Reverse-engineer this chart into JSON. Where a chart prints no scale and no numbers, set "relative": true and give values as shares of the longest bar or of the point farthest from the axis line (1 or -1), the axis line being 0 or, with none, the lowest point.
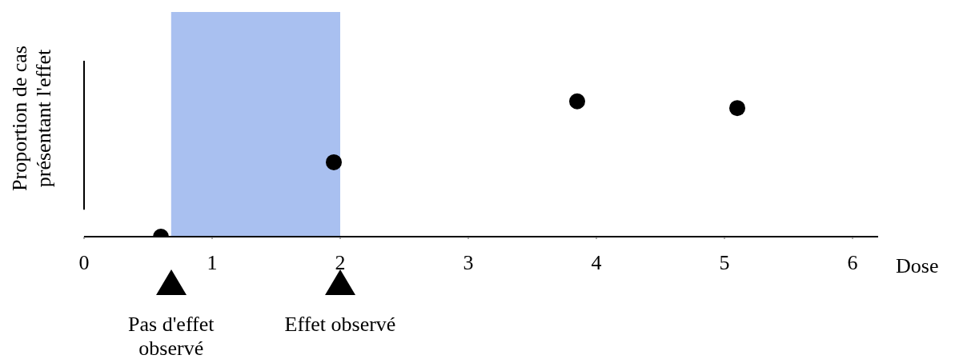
{
  "chart_data": {
    "type": "scatter",
    "relative": true,
    "xlabel": "Dose",
    "ylabel": "Proportion de cas présentant l'effet",
    "x": [
      0.6,
      1.95,
      3.85,
      5.1
    ],
    "series": [
      {
        "color": "#000000",
        "values": [
          0,
          0.55,
          1,
          0.95
        ]
      }
    ],
    "xlim": [
      0,
      6.2
    ],
    "xticks": [
      0,
      1,
      2,
      3,
      4,
      5,
      6
    ],
    "bands": [
      {
        "axis": "x",
        "from": 0.68,
        "to": 2.0,
        "color": "#a9c0f0"
      }
    ],
    "ref_lines": [
      {
        "axis": "x",
        "value": 0,
        "color": "#000000"
      }
    ],
    "annotations": [
      "Pas d'effet observé",
      "Effet observé"
    ],
    "marker": "circle"
  }
}
